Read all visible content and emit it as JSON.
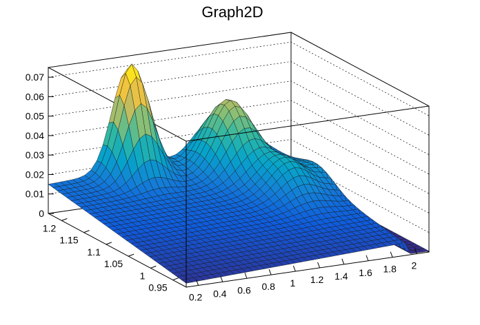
{
  "chart_data": {
    "type": "surface",
    "title": "Graph2D",
    "x_ticks": [
      "0.2",
      "0.4",
      "0.6",
      "0.8",
      "1",
      "1.2",
      "1.4",
      "1.6",
      "1.8",
      "2"
    ],
    "y_ticks": [
      "0.95",
      "1",
      "1.05",
      "1.1",
      "1.15",
      "1.2"
    ],
    "z_ticks": [
      "0",
      "0.01",
      "0.02",
      "0.03",
      "0.04",
      "0.05",
      "0.06",
      "0.07"
    ],
    "xlim": [
      0.1,
      2.1
    ],
    "ylim": [
      0.92,
      1.23
    ],
    "zlim": [
      0,
      0.075
    ],
    "colormap": [
      "#352a87",
      "#0f5cdd",
      "#1481d6",
      "#06a4ca",
      "#2eb7a4",
      "#87bf77",
      "#d1bb59",
      "#fec832",
      "#f9fb0e"
    ],
    "grid": true,
    "peaks": [
      {
        "x": 0.75,
        "y": 1.22,
        "z": 0.074
      },
      {
        "x": 1.45,
        "y": 1.19,
        "z": 0.052
      },
      {
        "x": 1.6,
        "y": 1.1,
        "z": 0.034
      }
    ]
  }
}
